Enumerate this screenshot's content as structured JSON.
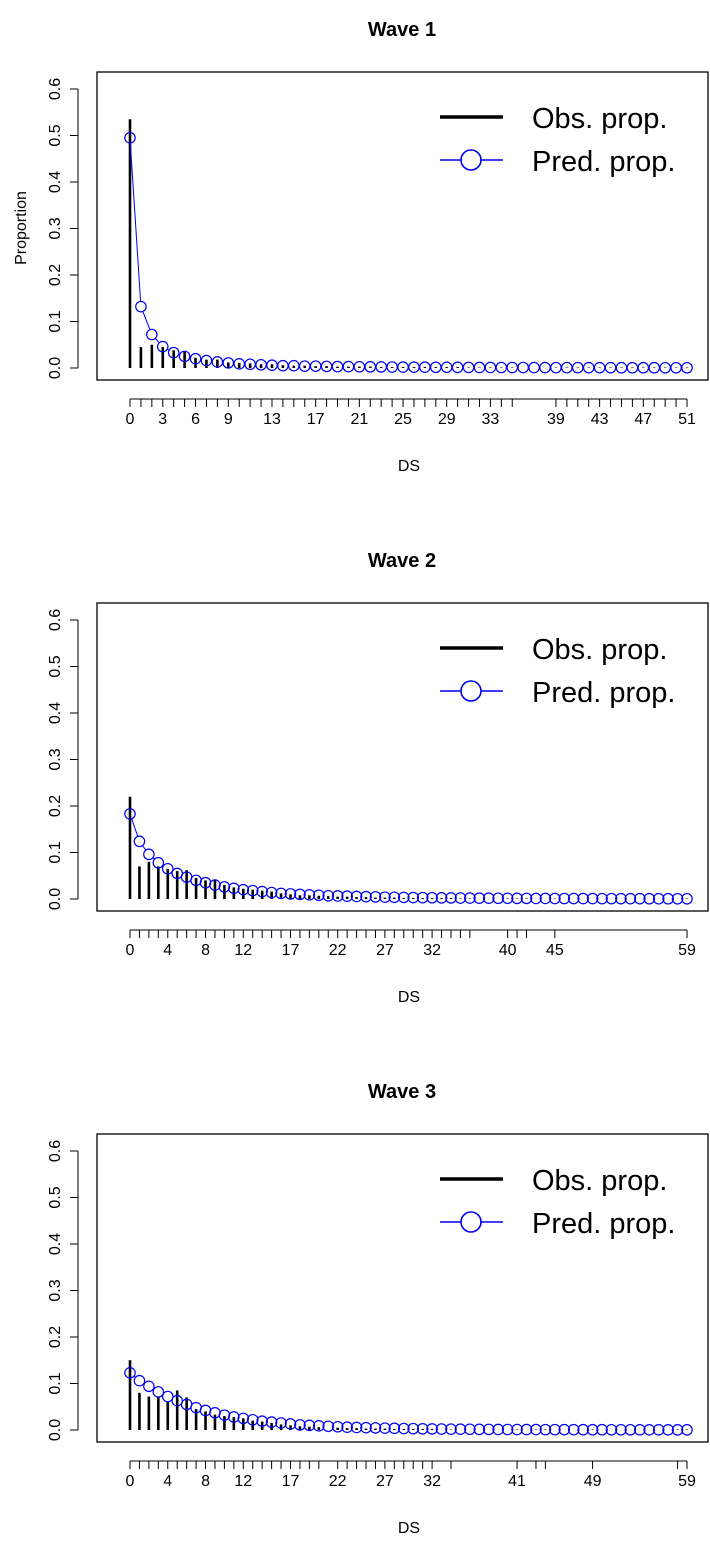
{
  "chart_data": [
    {
      "type": "bar",
      "title": "Wave 1",
      "xlabel": "DS",
      "ylabel": "Proportion",
      "xlim": [
        0,
        51
      ],
      "ylim": [
        0,
        0.6
      ],
      "y_ticks": [
        "0.0",
        "0.1",
        "0.2",
        "0.3",
        "0.4",
        "0.5",
        "0.6"
      ],
      "x_tick_positions": [
        0,
        1,
        2,
        3,
        4,
        5,
        6,
        7,
        8,
        9,
        10,
        11,
        12,
        13,
        14,
        15,
        16,
        17,
        18,
        19,
        20,
        21,
        22,
        23,
        24,
        25,
        26,
        27,
        28,
        29,
        30,
        31,
        32,
        33,
        34,
        35,
        39,
        40,
        41,
        42,
        43,
        44,
        45,
        46,
        47,
        48,
        49,
        50,
        51
      ],
      "x_tick_labels": [
        "0",
        "3",
        "6",
        "9",
        "13",
        "17",
        "21",
        "25",
        "29",
        "33",
        "39",
        "43",
        "47",
        "51"
      ],
      "x_tick_label_values": [
        0,
        3,
        6,
        9,
        13,
        17,
        21,
        25,
        29,
        33,
        39,
        43,
        47,
        51
      ],
      "legend": {
        "position": "top-right",
        "entries": [
          "Obs. prop.",
          "Pred. prop."
        ]
      },
      "series": [
        {
          "name": "Obs. prop.",
          "style": "bars",
          "color": "#000000",
          "x": [
            0,
            1,
            2,
            3,
            4,
            5,
            6,
            7,
            8,
            9,
            10,
            11,
            12,
            13,
            14,
            15,
            16,
            17,
            18,
            19,
            20,
            21,
            22,
            23,
            24,
            25,
            26,
            27,
            28,
            29,
            30,
            31,
            32,
            33,
            34,
            35,
            39,
            40,
            41,
            42,
            43,
            44,
            45,
            46,
            47,
            48,
            49,
            50,
            51
          ],
          "values": [
            0.535,
            0.045,
            0.05,
            0.045,
            0.038,
            0.035,
            0.022,
            0.018,
            0.018,
            0.012,
            0.011,
            0.01,
            0.008,
            0.008,
            0.006,
            0.005,
            0.005,
            0.004,
            0.004,
            0.003,
            0.003,
            0.003,
            0.003,
            0.002,
            0.002,
            0.002,
            0.002,
            0.002,
            0.002,
            0.002,
            0.002,
            0.001,
            0.001,
            0.001,
            0.001,
            0.001,
            0.001,
            0.001,
            0.001,
            0.001,
            0.001,
            0.001,
            0.001,
            0.001,
            0.001,
            0.001,
            0.001,
            0.001,
            0.001
          ]
        },
        {
          "name": "Pred. prop.",
          "style": "line-points",
          "color": "#0000ee",
          "x": [
            0,
            1,
            2,
            3,
            4,
            5,
            6,
            7,
            8,
            9,
            10,
            11,
            12,
            13,
            14,
            15,
            16,
            17,
            18,
            19,
            20,
            21,
            22,
            23,
            24,
            25,
            26,
            27,
            28,
            29,
            30,
            31,
            32,
            33,
            34,
            35,
            36,
            37,
            38,
            39,
            40,
            41,
            42,
            43,
            44,
            45,
            46,
            47,
            48,
            49,
            50,
            51
          ],
          "values": [
            0.495,
            0.132,
            0.072,
            0.046,
            0.033,
            0.025,
            0.02,
            0.016,
            0.013,
            0.011,
            0.009,
            0.008,
            0.007,
            0.006,
            0.005,
            0.005,
            0.004,
            0.004,
            0.0035,
            0.003,
            0.003,
            0.0027,
            0.0025,
            0.0023,
            0.0021,
            0.002,
            0.0018,
            0.0017,
            0.0016,
            0.0015,
            0.0014,
            0.0013,
            0.0012,
            0.0012,
            0.0011,
            0.001,
            0.001,
            0.0009,
            0.0009,
            0.0008,
            0.0008,
            0.0008,
            0.0007,
            0.0007,
            0.0007,
            0.0006,
            0.0006,
            0.0006,
            0.0006,
            0.0005,
            0.0005,
            0.0005
          ]
        }
      ]
    },
    {
      "type": "bar",
      "title": "Wave 2",
      "xlabel": "DS",
      "ylabel": "",
      "xlim": [
        0,
        59
      ],
      "ylim": [
        0,
        0.6
      ],
      "y_ticks": [
        "0.0",
        "0.1",
        "0.2",
        "0.3",
        "0.4",
        "0.5",
        "0.6"
      ],
      "x_tick_positions": [
        0,
        1,
        2,
        3,
        4,
        5,
        6,
        7,
        8,
        9,
        10,
        11,
        12,
        13,
        14,
        15,
        16,
        17,
        18,
        19,
        20,
        21,
        22,
        23,
        24,
        25,
        26,
        27,
        28,
        29,
        30,
        31,
        32,
        33,
        34,
        35,
        36,
        40,
        41,
        42,
        45,
        59
      ],
      "x_tick_labels": [
        "0",
        "4",
        "8",
        "12",
        "17",
        "22",
        "27",
        "32",
        "40",
        "45",
        "59"
      ],
      "x_tick_label_values": [
        0,
        4,
        8,
        12,
        17,
        22,
        27,
        32,
        40,
        45,
        59
      ],
      "legend": {
        "position": "top-right",
        "entries": [
          "Obs. prop.",
          "Pred. prop."
        ]
      },
      "series": [
        {
          "name": "Obs. prop.",
          "style": "bars",
          "color": "#000000",
          "x": [
            0,
            1,
            2,
            3,
            4,
            5,
            6,
            7,
            8,
            9,
            10,
            11,
            12,
            13,
            14,
            15,
            16,
            17,
            18,
            19,
            20,
            21,
            22,
            23,
            24,
            25,
            26,
            27,
            28,
            29,
            30,
            31,
            32,
            33,
            34,
            35,
            36,
            40,
            41,
            42,
            45,
            59
          ],
          "values": [
            0.22,
            0.07,
            0.08,
            0.07,
            0.065,
            0.06,
            0.062,
            0.045,
            0.04,
            0.042,
            0.03,
            0.025,
            0.022,
            0.02,
            0.018,
            0.016,
            0.012,
            0.01,
            0.008,
            0.008,
            0.007,
            0.006,
            0.005,
            0.005,
            0.004,
            0.004,
            0.003,
            0.003,
            0.003,
            0.002,
            0.002,
            0.002,
            0.002,
            0.002,
            0.002,
            0.001,
            0.001,
            0.001,
            0.001,
            0.001,
            0.001,
            0.001
          ]
        },
        {
          "name": "Pred. prop.",
          "style": "line-points",
          "color": "#0000ee",
          "x": [
            0,
            1,
            2,
            3,
            4,
            5,
            6,
            7,
            8,
            9,
            10,
            11,
            12,
            13,
            14,
            15,
            16,
            17,
            18,
            19,
            20,
            21,
            22,
            23,
            24,
            25,
            26,
            27,
            28,
            29,
            30,
            31,
            32,
            33,
            34,
            35,
            36,
            37,
            38,
            39,
            40,
            41,
            42,
            43,
            44,
            45,
            46,
            47,
            48,
            49,
            50,
            51,
            52,
            53,
            54,
            55,
            56,
            57,
            58,
            59
          ],
          "values": [
            0.183,
            0.124,
            0.096,
            0.078,
            0.065,
            0.055,
            0.047,
            0.04,
            0.035,
            0.03,
            0.026,
            0.023,
            0.02,
            0.018,
            0.016,
            0.014,
            0.012,
            0.011,
            0.01,
            0.009,
            0.008,
            0.007,
            0.0065,
            0.006,
            0.0055,
            0.005,
            0.0045,
            0.004,
            0.0037,
            0.0034,
            0.0031,
            0.0029,
            0.0027,
            0.0025,
            0.0023,
            0.0021,
            0.002,
            0.0018,
            0.0017,
            0.0016,
            0.0015,
            0.0014,
            0.0013,
            0.0012,
            0.0012,
            0.0011,
            0.001,
            0.001,
            0.0009,
            0.0009,
            0.0008,
            0.0008,
            0.0007,
            0.0007,
            0.0007,
            0.0006,
            0.0006,
            0.0006,
            0.0005,
            0.0005
          ]
        }
      ]
    },
    {
      "type": "bar",
      "title": "Wave 3",
      "xlabel": "DS",
      "ylabel": "",
      "xlim": [
        0,
        59
      ],
      "ylim": [
        0,
        0.6
      ],
      "y_ticks": [
        "0.0",
        "0.1",
        "0.2",
        "0.3",
        "0.4",
        "0.5",
        "0.6"
      ],
      "x_tick_positions": [
        0,
        1,
        2,
        3,
        4,
        5,
        6,
        7,
        8,
        9,
        10,
        11,
        12,
        13,
        14,
        15,
        16,
        17,
        18,
        19,
        20,
        22,
        23,
        24,
        25,
        26,
        27,
        28,
        29,
        30,
        31,
        32,
        34,
        41,
        43,
        44,
        49,
        58,
        59
      ],
      "x_tick_labels": [
        "0",
        "4",
        "8",
        "12",
        "17",
        "22",
        "27",
        "32",
        "41",
        "49",
        "59"
      ],
      "x_tick_label_values": [
        0,
        4,
        8,
        12,
        17,
        22,
        27,
        32,
        41,
        49,
        59
      ],
      "legend": {
        "position": "top-right",
        "entries": [
          "Obs. prop.",
          "Pred. prop."
        ]
      },
      "series": [
        {
          "name": "Obs. prop.",
          "style": "bars",
          "color": "#000000",
          "x": [
            0,
            1,
            2,
            3,
            4,
            5,
            6,
            7,
            8,
            9,
            10,
            11,
            12,
            13,
            14,
            15,
            16,
            17,
            18,
            19,
            20,
            22,
            23,
            24,
            25,
            26,
            27,
            28,
            29,
            30,
            31,
            32,
            34,
            41,
            43,
            44,
            49,
            58,
            59
          ],
          "values": [
            0.15,
            0.08,
            0.072,
            0.07,
            0.06,
            0.085,
            0.07,
            0.045,
            0.04,
            0.033,
            0.03,
            0.028,
            0.025,
            0.02,
            0.018,
            0.015,
            0.012,
            0.01,
            0.008,
            0.007,
            0.006,
            0.005,
            0.004,
            0.004,
            0.003,
            0.003,
            0.003,
            0.002,
            0.002,
            0.002,
            0.002,
            0.002,
            0.001,
            0.001,
            0.001,
            0.001,
            0.001,
            0.001,
            0.001
          ]
        },
        {
          "name": "Pred. prop.",
          "style": "line-points",
          "color": "#0000ee",
          "x": [
            0,
            1,
            2,
            3,
            4,
            5,
            6,
            7,
            8,
            9,
            10,
            11,
            12,
            13,
            14,
            15,
            16,
            17,
            18,
            19,
            20,
            21,
            22,
            23,
            24,
            25,
            26,
            27,
            28,
            29,
            30,
            31,
            32,
            33,
            34,
            35,
            36,
            37,
            38,
            39,
            40,
            41,
            42,
            43,
            44,
            45,
            46,
            47,
            48,
            49,
            50,
            51,
            52,
            53,
            54,
            55,
            56,
            57,
            58,
            59
          ],
          "values": [
            0.123,
            0.106,
            0.094,
            0.082,
            0.072,
            0.063,
            0.055,
            0.048,
            0.042,
            0.037,
            0.032,
            0.028,
            0.025,
            0.022,
            0.019,
            0.017,
            0.015,
            0.013,
            0.011,
            0.01,
            0.009,
            0.008,
            0.007,
            0.006,
            0.0055,
            0.005,
            0.0045,
            0.004,
            0.0036,
            0.0032,
            0.0029,
            0.0026,
            0.0023,
            0.0021,
            0.0019,
            0.0017,
            0.0016,
            0.0014,
            0.0013,
            0.0012,
            0.0011,
            0.001,
            0.0009,
            0.0009,
            0.0008,
            0.0008,
            0.0007,
            0.0007,
            0.0006,
            0.0006,
            0.0006,
            0.0005,
            0.0005,
            0.0005,
            0.0004,
            0.0004,
            0.0004,
            0.0004,
            0.0003,
            0.0003
          ]
        }
      ]
    }
  ]
}
